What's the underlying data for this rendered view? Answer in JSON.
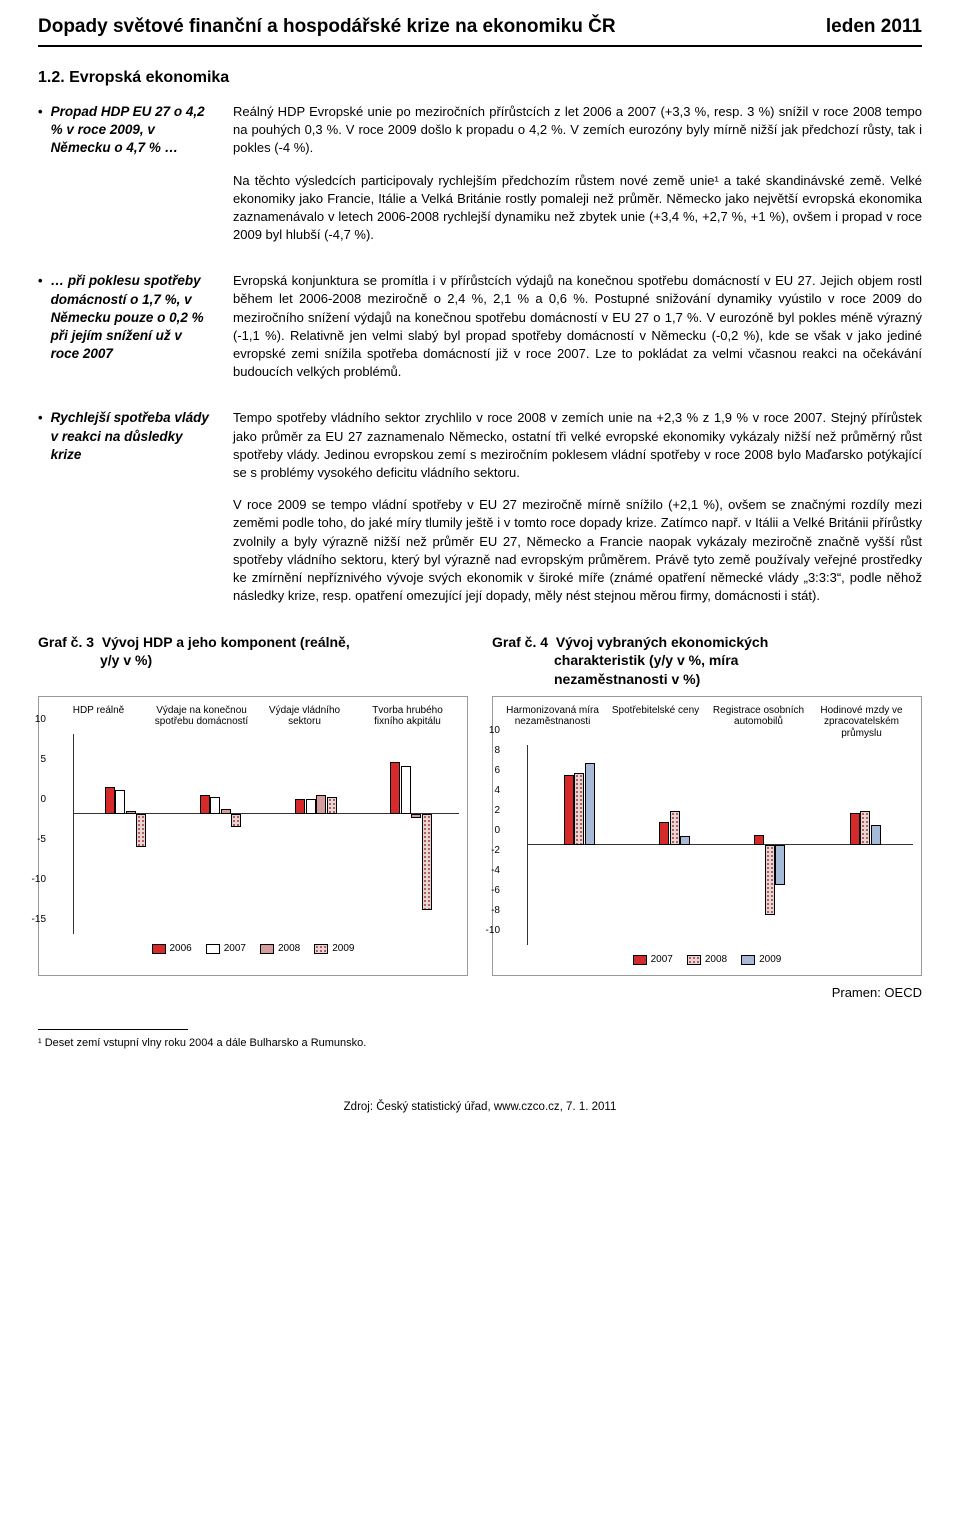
{
  "header": {
    "title": "Dopady světové finanční a hospodářské krize na ekonomiku ČR",
    "date": "leden 2011"
  },
  "section_heading": "1.2. Evropská ekonomika",
  "side_bullets": [
    "Propad HDP EU 27 o 4,2 % v roce 2009, v Německu o 4,7 % …",
    "… při poklesu spotřeby domácností o 1,7 %, v Německu pouze o 0,2 % při jejím snížení už v roce 2007",
    "Rychlejší spotřeba vlády v reakci na důsledky krize"
  ],
  "paragraphs": [
    "Reálný HDP Evropské unie po meziročních přírůstcích z let 2006 a 2007 (+3,3 %, resp. 3 %) snížil v roce 2008 tempo na pouhých 0,3 %. V roce 2009 došlo k propadu o 4,2 %. V zemích eurozóny byly mírně nižší jak předchozí růsty, tak i pokles (-4 %).",
    "Na těchto výsledcích participovaly rychlejším předchozím růstem nové země unie¹ a také skandinávské země. Velké ekonomiky jako Francie, Itálie a Velká Británie rostly pomaleji než průměr. Německo jako největší evropská ekonomika zaznamenávalo v letech 2006-2008 rychlejší dynamiku než zbytek unie (+3,4 %, +2,7 %,  +1 %), ovšem i propad v roce 2009 byl hlubší (-4,7 %).",
    "Evropská konjunktura se promítla i v přírůstcích výdajů na konečnou spotřebu domácností v EU 27. Jejich objem rostl během let 2006-2008 meziročně o 2,4 %, 2,1 % a 0,6 %. Postupné snižování dynamiky vyústilo v roce 2009 do meziročního snížení výdajů na konečnou spotřebu domácností v EU 27 o 1,7 %. V eurozóně byl pokles méně výrazný (-1,1 %). Relativně jen velmi slabý byl propad spotřeby domácností v Německu (-0,2 %), kde se však v jako jediné evropské zemi snížila spotřeba domácností již v roce 2007. Lze to pokládat za velmi včasnou reakci na očekávání budoucích velkých problémů.",
    "Tempo spotřeby vládního sektor zrychlilo v roce 2008 v zemích unie na +2,3 % z 1,9 % v roce 2007. Stejný přírůstek jako průměr za EU 27 zaznamenalo Německo, ostatní tři velké evropské ekonomiky vykázaly nižší než průměrný růst spotřeby vlády. Jedinou evropskou zemí s meziročním poklesem vládní spotřeby v roce 2008 bylo Maďarsko potýkající se s problémy vysokého deficitu vládního sektoru.",
    "V roce 2009 se tempo vládní spotřeby v EU 27 meziročně mírně snížilo (+2,1 %), ovšem se značnými rozdíly mezi zeměmi podle toho, do jaké míry tlumily ještě i v tomto roce dopady krize. Zatímco např. v Itálii a Velké Británii přírůstky zvolnily a byly výrazně nižší než průměr EU 27, Německo a Francie naopak vykázaly meziročně značně vyšší růst spotřeby vládního sektoru, který byl výrazně nad evropským průměrem. Právě tyto země používaly veřejné prostředky ke zmírnění nepříznivého vývoje svých ekonomik v široké míře (známé opatření německé vlády „3:3:3“, podle něhož následky krize, resp. opatření omezující její dopady, měly nést stejnou měrou firmy, domácnosti i stát)."
  ],
  "chart3": {
    "title_prefix": "Graf č. 3",
    "title_main": "Vývoj HDP a jeho komponent (reálně,",
    "title_sub": "y/y v %)",
    "categories": [
      "HDP reálně",
      "Výdaje na konečnou spotřebu domácností",
      "Výdaje vládního sektoru",
      "Tvorba hrubého fixního akpitálu"
    ],
    "years": [
      "2006",
      "2007",
      "2008",
      "2009"
    ],
    "series": [
      [
        3.3,
        3.0,
        0.3,
        -4.2
      ],
      [
        2.4,
        2.1,
        0.6,
        -1.7
      ],
      [
        1.8,
        1.9,
        2.3,
        2.1
      ],
      [
        6.5,
        6.0,
        -0.5,
        -12.0
      ]
    ],
    "ylim": [
      -15,
      10
    ],
    "ytick_step": 5,
    "colors": [
      "#d62a2a",
      "#ffffff",
      "#d49d9b",
      "dots"
    ],
    "border_color": "#000000"
  },
  "chart4": {
    "title_prefix": "Graf č. 4",
    "title_main": "Vývoj vybraných ekonomických",
    "title_sub1": "charakteristik (y/y v %, míra",
    "title_sub2": "nezaměstnanosti v %)",
    "categories": [
      "Harmonizovaná míra nezaměstnanosti",
      "Spotřebitelské ceny",
      "Registrace osobních automobilů",
      "Hodinové mzdy ve zpracovatelském průmyslu"
    ],
    "years": [
      "2007",
      "2008",
      "2009"
    ],
    "series": [
      [
        7.0,
        7.2,
        8.2
      ],
      [
        2.3,
        3.4,
        0.9
      ],
      [
        1.0,
        -7.0,
        -4.0
      ],
      [
        3.2,
        3.4,
        2.0
      ]
    ],
    "ylim": [
      -10,
      10
    ],
    "ytick_step": 2,
    "colors": [
      "#d62a2a",
      "dots",
      "#a6b9d6"
    ],
    "border_color": "#000000"
  },
  "source_label": "Pramen: OECD",
  "footnote": "¹ Deset zemí vstupní vlny roku 2004 a dále Bulharsko a Rumunsko.",
  "page_source": "Zdroj: Český statistický úřad, www.czco.cz, 7. 1. 2011"
}
